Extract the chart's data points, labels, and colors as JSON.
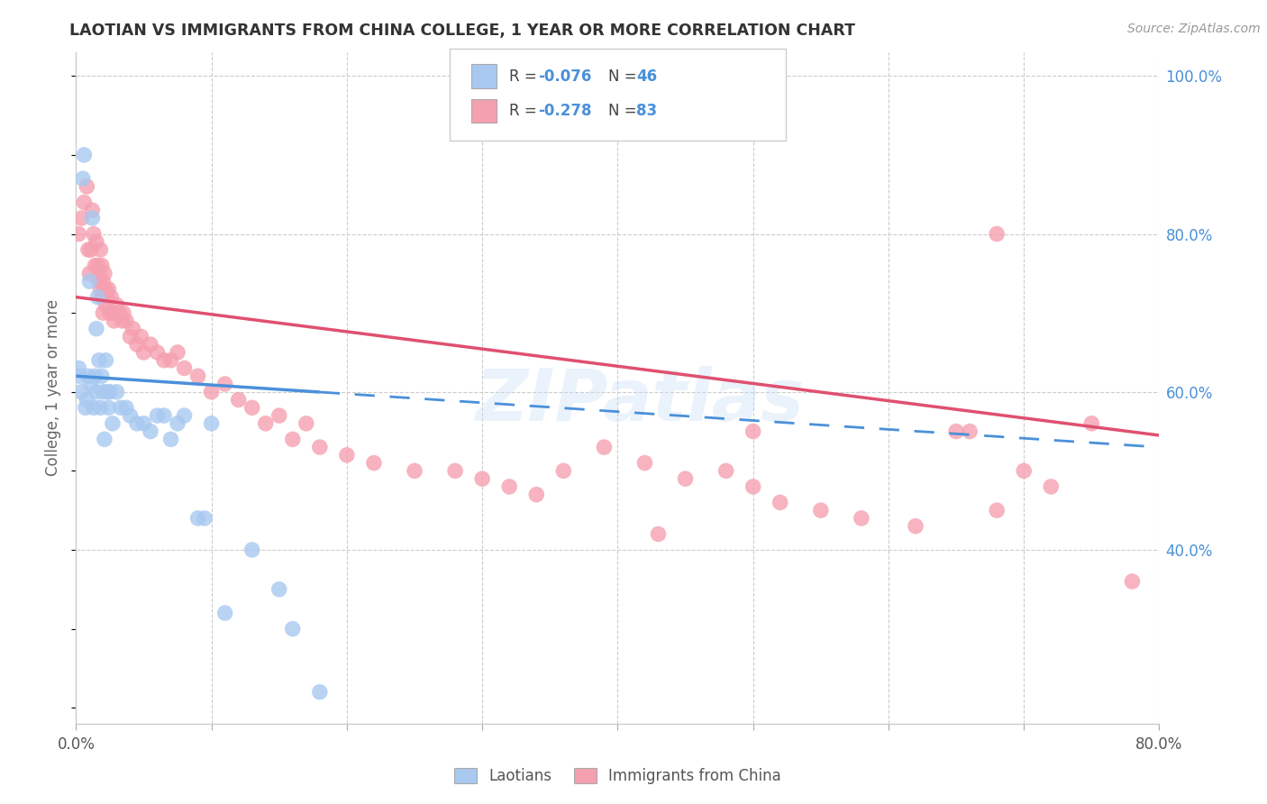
{
  "title": "LAOTIAN VS IMMIGRANTS FROM CHINA COLLEGE, 1 YEAR OR MORE CORRELATION CHART",
  "source": "Source: ZipAtlas.com",
  "ylabel": "College, 1 year or more",
  "xlim": [
    0.0,
    0.8
  ],
  "ylim": [
    0.18,
    1.03
  ],
  "blue_color": "#a8c8f0",
  "pink_color": "#f5a0b0",
  "blue_line_color": "#4a90d9",
  "pink_line_color": "#e05070",
  "watermark": "ZIPatlas",
  "legend_R_blue": "-0.076",
  "legend_N_blue": "46",
  "legend_R_pink": "-0.278",
  "legend_N_pink": "83",
  "blue_scatter_x": [
    0.002,
    0.003,
    0.004,
    0.005,
    0.006,
    0.007,
    0.008,
    0.009,
    0.01,
    0.011,
    0.012,
    0.013,
    0.014,
    0.015,
    0.015,
    0.016,
    0.017,
    0.018,
    0.019,
    0.02,
    0.021,
    0.022,
    0.023,
    0.024,
    0.025,
    0.027,
    0.03,
    0.033,
    0.037,
    0.04,
    0.045,
    0.05,
    0.055,
    0.06,
    0.065,
    0.07,
    0.075,
    0.08,
    0.09,
    0.095,
    0.1,
    0.11,
    0.13,
    0.15,
    0.16,
    0.18
  ],
  "blue_scatter_y": [
    0.63,
    0.62,
    0.6,
    0.87,
    0.9,
    0.58,
    0.59,
    0.62,
    0.74,
    0.61,
    0.82,
    0.58,
    0.62,
    0.68,
    0.6,
    0.72,
    0.64,
    0.58,
    0.62,
    0.6,
    0.54,
    0.64,
    0.6,
    0.58,
    0.6,
    0.56,
    0.6,
    0.58,
    0.58,
    0.57,
    0.56,
    0.56,
    0.55,
    0.57,
    0.57,
    0.54,
    0.56,
    0.57,
    0.44,
    0.44,
    0.56,
    0.32,
    0.4,
    0.35,
    0.3,
    0.22
  ],
  "pink_scatter_x": [
    0.002,
    0.004,
    0.006,
    0.008,
    0.009,
    0.01,
    0.011,
    0.012,
    0.013,
    0.014,
    0.015,
    0.016,
    0.017,
    0.017,
    0.018,
    0.018,
    0.019,
    0.019,
    0.02,
    0.02,
    0.021,
    0.021,
    0.022,
    0.022,
    0.023,
    0.024,
    0.025,
    0.026,
    0.027,
    0.028,
    0.03,
    0.032,
    0.034,
    0.035,
    0.037,
    0.04,
    0.042,
    0.045,
    0.048,
    0.05,
    0.055,
    0.06,
    0.065,
    0.07,
    0.075,
    0.08,
    0.09,
    0.1,
    0.11,
    0.12,
    0.13,
    0.14,
    0.15,
    0.16,
    0.17,
    0.18,
    0.2,
    0.22,
    0.25,
    0.28,
    0.3,
    0.32,
    0.34,
    0.36,
    0.39,
    0.42,
    0.45,
    0.48,
    0.5,
    0.52,
    0.55,
    0.58,
    0.62,
    0.65,
    0.68,
    0.7,
    0.72,
    0.75,
    0.78,
    0.68,
    0.43,
    0.5,
    0.66
  ],
  "pink_scatter_y": [
    0.8,
    0.82,
    0.84,
    0.86,
    0.78,
    0.75,
    0.78,
    0.83,
    0.8,
    0.76,
    0.79,
    0.76,
    0.74,
    0.75,
    0.73,
    0.78,
    0.72,
    0.76,
    0.7,
    0.74,
    0.73,
    0.75,
    0.71,
    0.73,
    0.72,
    0.73,
    0.7,
    0.72,
    0.7,
    0.69,
    0.71,
    0.7,
    0.69,
    0.7,
    0.69,
    0.67,
    0.68,
    0.66,
    0.67,
    0.65,
    0.66,
    0.65,
    0.64,
    0.64,
    0.65,
    0.63,
    0.62,
    0.6,
    0.61,
    0.59,
    0.58,
    0.56,
    0.57,
    0.54,
    0.56,
    0.53,
    0.52,
    0.51,
    0.5,
    0.5,
    0.49,
    0.48,
    0.47,
    0.5,
    0.53,
    0.51,
    0.49,
    0.5,
    0.48,
    0.46,
    0.45,
    0.44,
    0.43,
    0.55,
    0.45,
    0.5,
    0.48,
    0.56,
    0.36,
    0.8,
    0.42,
    0.55,
    0.55
  ],
  "blue_line_start_x": 0.0,
  "blue_line_solid_end_x": 0.18,
  "blue_line_end_x": 0.8,
  "blue_line_start_y": 0.62,
  "blue_line_end_y": 0.53,
  "pink_line_start_x": 0.0,
  "pink_line_end_x": 0.8,
  "pink_line_start_y": 0.72,
  "pink_line_end_y": 0.545,
  "background_color": "#ffffff",
  "grid_color": "#cccccc"
}
